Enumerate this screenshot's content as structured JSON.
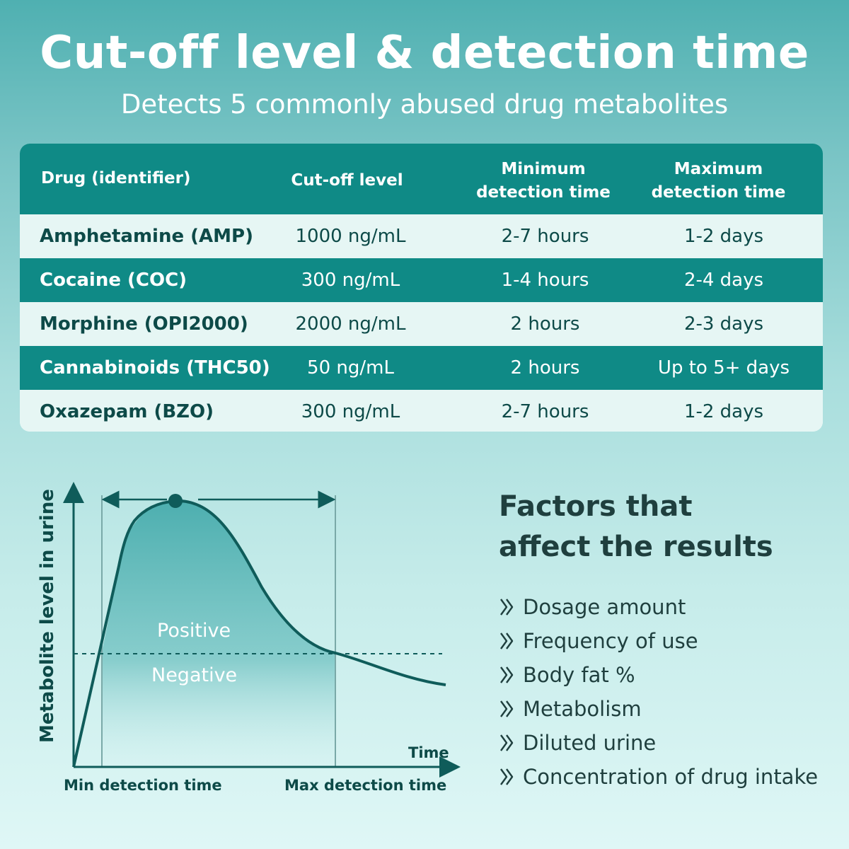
{
  "header": {
    "title": "Cut-off level & detection time",
    "subtitle": "Detects 5 commonly abused drug metabolites"
  },
  "table": {
    "headers": {
      "drug": "Drug (identifier)",
      "cutoff": "Cut-off level",
      "min_line1": "Minimum",
      "min_line2": "detection time",
      "max_line1": "Maximum",
      "max_line2": "detection time"
    },
    "rows": [
      {
        "drug": "Amphetamine (AMP)",
        "cutoff": "1000 ng/mL",
        "min": "2-7 hours",
        "max": "1-2 days"
      },
      {
        "drug": "Cocaine (COC)",
        "cutoff": "300 ng/mL",
        "min": "1-4 hours",
        "max": "2-4 days"
      },
      {
        "drug": "Morphine (OPI2000)",
        "cutoff": "2000 ng/mL",
        "min": "2 hours",
        "max": "2-3 days"
      },
      {
        "drug": "Cannabinoids (THC50)",
        "cutoff": "50 ng/mL",
        "min": "2 hours",
        "max": "Up to 5+ days"
      },
      {
        "drug": "Oxazepam (BZO)",
        "cutoff": "300 ng/mL",
        "min": "2-7 hours",
        "max": "1-2 days"
      }
    ]
  },
  "graph": {
    "y_axis_label": "Metabolite level in urine",
    "x_axis_label": "Time",
    "min_label": "Min detection time",
    "max_label": "Max detection time",
    "positive_label": "Positive",
    "negative_label": "Negative",
    "colors": {
      "curve": "#0f5c5a",
      "fill": "#3aa5a6"
    }
  },
  "factors": {
    "title_line1": "Factors that",
    "title_line2": "affect the results",
    "items": [
      "Dosage amount",
      "Frequency of use",
      "Body fat %",
      "Metabolism",
      "Diluted urine",
      "Concentration of drug intake"
    ]
  }
}
